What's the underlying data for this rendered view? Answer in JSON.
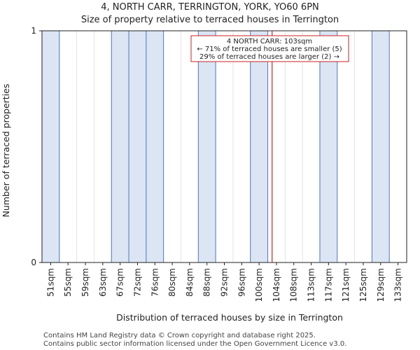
{
  "chart_data": {
    "type": "bar",
    "title_line1": "4, NORTH CARR, TERRINGTON, YORK, YO60 6PN",
    "title_line2": "Size of property relative to terraced houses in Terrington",
    "xlabel": "Distribution of terraced houses by size in Terrington",
    "ylabel": "Number of terraced properties",
    "categories": [
      "51sqm",
      "55sqm",
      "59sqm",
      "63sqm",
      "67sqm",
      "72sqm",
      "76sqm",
      "80sqm",
      "84sqm",
      "88sqm",
      "92sqm",
      "96sqm",
      "100sqm",
      "104sqm",
      "108sqm",
      "113sqm",
      "117sqm",
      "121sqm",
      "125sqm",
      "129sqm",
      "133sqm"
    ],
    "values": [
      1,
      0,
      0,
      0,
      1,
      1,
      1,
      0,
      0,
      1,
      0,
      0,
      1,
      0,
      0,
      0,
      1,
      0,
      0,
      1,
      0
    ],
    "highlight_after_index": 12,
    "ylim": [
      0,
      1
    ],
    "yticks": [
      0,
      1
    ],
    "grid": false,
    "bar_color": "#dbe5f3",
    "bar_color_larger": "#f0f4fc",
    "bar_edge_color": "#4a78c0",
    "marker": {
      "value_sqm": 103,
      "color": "#cc2222",
      "label_line1": "4 NORTH CARR: 103sqm",
      "label_line2": "← 71% of terraced houses are smaller (5)",
      "label_line3": "29% of terraced houses are larger (2) →"
    }
  },
  "footer": {
    "line1": "Contains HM Land Registry data © Crown copyright and database right 2025.",
    "line2": "Contains public sector information licensed under the Open Government Licence v3.0."
  }
}
